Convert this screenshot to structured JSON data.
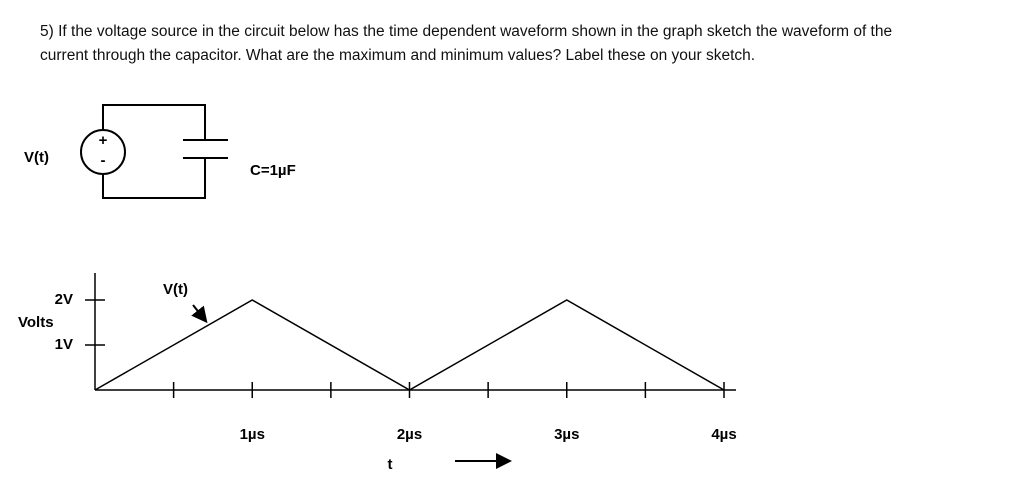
{
  "question_lines": [
    "5) If the voltage source in the circuit below has the time dependent waveform shown in the graph sketch the waveform of the",
    "current through the capacitor.  What are the maximum and minimum values? Label these on your sketch."
  ],
  "circuit": {
    "source_label": "V(t)",
    "source_plus": "+",
    "source_minus": "-",
    "capacitor_label": "C=1µF"
  },
  "chart_data": {
    "type": "line",
    "ylabel": "Volts",
    "xlabel": "t",
    "x": [
      0,
      1,
      2,
      3,
      4
    ],
    "series": [
      {
        "name": "V(t)",
        "color": "#000000",
        "values": [
          0,
          2,
          0,
          2,
          0
        ]
      }
    ],
    "xlim": [
      0,
      4
    ],
    "ylim": [
      0,
      2.6
    ],
    "xticks": [
      {
        "value": 1,
        "label": "1µs"
      },
      {
        "value": 2,
        "label": "2µs"
      },
      {
        "value": 3,
        "label": "3µs"
      },
      {
        "value": 4,
        "label": "4µs"
      }
    ],
    "xticks_minor": [
      0.5,
      1.5,
      2.5,
      3.5
    ],
    "yticks": [
      {
        "value": 1,
        "label": "1V"
      },
      {
        "value": 2,
        "label": "2V"
      }
    ]
  }
}
